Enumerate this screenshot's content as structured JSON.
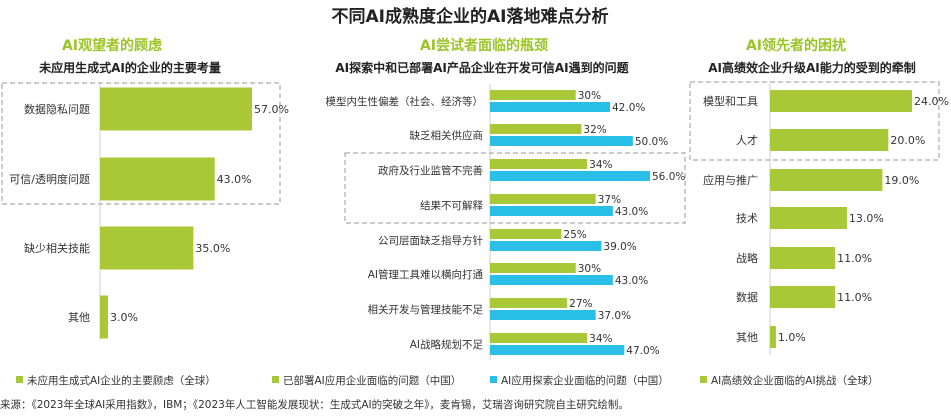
{
  "title": "不同AI成熟度企业的AI落地难点分析",
  "colors": {
    "green": "#a8c837",
    "blue": "#29bfe6",
    "green_heading": "#9cc428",
    "dashed_box": "#aaaaaa"
  },
  "chart_data": [
    {
      "type": "bar",
      "orientation": "horizontal",
      "heading": "AI观望者的顾虑",
      "title": "未应用生成式AI的企业的主要考量",
      "categories": [
        "数据隐私问题",
        "可信/透明度问题",
        "缺少相关技能",
        "其他"
      ],
      "series": [
        {
          "name": "未应用生成式AI企业的主要顾虑（全球）",
          "color": "#a8c837",
          "values": [
            57.0,
            43.0,
            35.0,
            3.0
          ],
          "labels": [
            "57.0%",
            "43.0%",
            "35.0%",
            "3.0%"
          ]
        }
      ],
      "xlim": [
        0,
        57
      ],
      "highlighted_categories": [
        "数据隐私问题",
        "可信/透明度问题"
      ]
    },
    {
      "type": "bar",
      "orientation": "horizontal",
      "heading": "AI尝试者面临的瓶颈",
      "title": "AI探索中和已部署AI产品企业在开发可信AI遇到的问题",
      "categories": [
        "模型内生性偏差（社会、经济等）",
        "缺乏相关供应商",
        "政府及行业监管不完善",
        "结果不可解释",
        "公司层面缺乏指导方针",
        "AI管理工具难以横向打通",
        "相关开发与管理技能不足",
        "AI战略规划不足"
      ],
      "series": [
        {
          "name": "已部署AI应用企业面临的问题（中国）",
          "color": "#a8c837",
          "values": [
            30,
            32,
            34,
            37,
            25,
            30,
            27,
            34
          ],
          "labels": [
            "30%",
            "32%",
            "34%",
            "37%",
            "25%",
            "30%",
            "27%",
            "34%"
          ]
        },
        {
          "name": "AI应用探索企业面临的问题（中国）",
          "color": "#29bfe6",
          "values": [
            42.0,
            50.0,
            56.0,
            43.0,
            39.0,
            43.0,
            37.0,
            47.0
          ],
          "labels": [
            "42.0%",
            "50.0%",
            "56.0%",
            "43.0%",
            "39.0%",
            "43.0%",
            "37.0%",
            "47.0%"
          ]
        }
      ],
      "xlim": [
        0,
        56
      ],
      "highlighted_categories": [
        "政府及行业监管不完善",
        "结果不可解释"
      ]
    },
    {
      "type": "bar",
      "orientation": "horizontal",
      "heading": "AI领先者的困扰",
      "title": "AI高绩效企业升级AI能力的受到的牵制",
      "categories": [
        "模型和工具",
        "人才",
        "应用与推广",
        "技术",
        "战略",
        "数据",
        "其他"
      ],
      "series": [
        {
          "name": "AI高绩效企业面临的AI挑战（全球）",
          "color": "#a8c837",
          "values": [
            24.0,
            20.0,
            19.0,
            13.0,
            11.0,
            11.0,
            1.0
          ],
          "labels": [
            "24.0%",
            "20.0%",
            "19.0%",
            "13.0%",
            "11.0%",
            "11.0%",
            "1.0%"
          ]
        }
      ],
      "xlim": [
        0,
        24
      ],
      "highlighted_categories": [
        "模型和工具",
        "人才"
      ]
    }
  ],
  "legend": [
    {
      "label": "未应用生成式AI企业的主要顾虑（全球）",
      "color": "#a8c837"
    },
    {
      "label": "已部署AI应用企业面临的问题（中国）",
      "color": "#a8c837"
    },
    {
      "label": "AI应用探索企业面临的问题（中国）",
      "color": "#29bfe6"
    },
    {
      "label": "AI高绩效企业面临的AI挑战（全球）",
      "color": "#a8c837"
    }
  ],
  "source": "来源：《2023年全球AI采用指数》，IBM；《2023年人工智能发展现状：生成式AI的突破之年》，麦肯锡，艾瑞咨询研究院自主研究绘制。"
}
